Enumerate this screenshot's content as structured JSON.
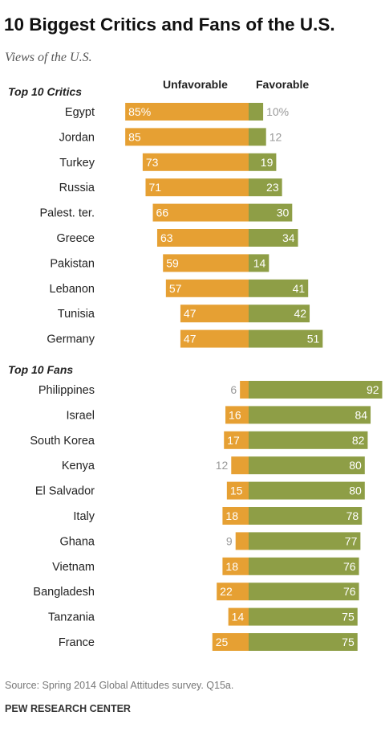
{
  "title": "10 Biggest Critics and Fans of the U.S.",
  "subtitle": "Views of the U.S.",
  "footer": {
    "source": "Source: Spring 2014 Global Attitudes survey. Q15a.",
    "org": "PEW RESEARCH CENTER"
  },
  "chart_data": {
    "type": "bar",
    "orientation": "diverging-horizontal",
    "column_headers": {
      "unfavorable": "Unfavorable",
      "favorable": "Favorable"
    },
    "colors": {
      "unfavorable": "#e6a033",
      "favorable": "#8e9e46",
      "label_in_bar": "#ffffff",
      "label_outside": "#999999",
      "country": "#222222"
    },
    "groups": [
      {
        "title": "Top 10 Critics",
        "rows": [
          {
            "country": "Egypt",
            "unfavorable": 85,
            "favorable": 10,
            "unfavorable_label": "85%",
            "favorable_label": "10%"
          },
          {
            "country": "Jordan",
            "unfavorable": 85,
            "favorable": 12,
            "unfavorable_label": "85",
            "favorable_label": "12"
          },
          {
            "country": "Turkey",
            "unfavorable": 73,
            "favorable": 19,
            "unfavorable_label": "73",
            "favorable_label": "19"
          },
          {
            "country": "Russia",
            "unfavorable": 71,
            "favorable": 23,
            "unfavorable_label": "71",
            "favorable_label": "23"
          },
          {
            "country": "Palest. ter.",
            "unfavorable": 66,
            "favorable": 30,
            "unfavorable_label": "66",
            "favorable_label": "30"
          },
          {
            "country": "Greece",
            "unfavorable": 63,
            "favorable": 34,
            "unfavorable_label": "63",
            "favorable_label": "34"
          },
          {
            "country": "Pakistan",
            "unfavorable": 59,
            "favorable": 14,
            "unfavorable_label": "59",
            "favorable_label": "14"
          },
          {
            "country": "Lebanon",
            "unfavorable": 57,
            "favorable": 41,
            "unfavorable_label": "57",
            "favorable_label": "41"
          },
          {
            "country": "Tunisia",
            "unfavorable": 47,
            "favorable": 42,
            "unfavorable_label": "47",
            "favorable_label": "42"
          },
          {
            "country": "Germany",
            "unfavorable": 47,
            "favorable": 51,
            "unfavorable_label": "47",
            "favorable_label": "51"
          }
        ]
      },
      {
        "title": "Top 10 Fans",
        "rows": [
          {
            "country": "Philippines",
            "unfavorable": 6,
            "favorable": 92,
            "unfavorable_label": "6",
            "favorable_label": "92"
          },
          {
            "country": "Israel",
            "unfavorable": 16,
            "favorable": 84,
            "unfavorable_label": "16",
            "favorable_label": "84"
          },
          {
            "country": "South Korea",
            "unfavorable": 17,
            "favorable": 82,
            "unfavorable_label": "17",
            "favorable_label": "82"
          },
          {
            "country": "Kenya",
            "unfavorable": 12,
            "favorable": 80,
            "unfavorable_label": "12",
            "favorable_label": "80"
          },
          {
            "country": "El Salvador",
            "unfavorable": 15,
            "favorable": 80,
            "unfavorable_label": "15",
            "favorable_label": "80"
          },
          {
            "country": "Italy",
            "unfavorable": 18,
            "favorable": 78,
            "unfavorable_label": "18",
            "favorable_label": "78"
          },
          {
            "country": "Ghana",
            "unfavorable": 9,
            "favorable": 77,
            "unfavorable_label": "9",
            "favorable_label": "77"
          },
          {
            "country": "Vietnam",
            "unfavorable": 18,
            "favorable": 76,
            "unfavorable_label": "18",
            "favorable_label": "76"
          },
          {
            "country": "Bangladesh",
            "unfavorable": 22,
            "favorable": 76,
            "unfavorable_label": "22",
            "favorable_label": "76"
          },
          {
            "country": "Tanzania",
            "unfavorable": 14,
            "favorable": 75,
            "unfavorable_label": "14",
            "favorable_label": "75"
          },
          {
            "country": "France",
            "unfavorable": 25,
            "favorable": 75,
            "unfavorable_label": "25",
            "favorable_label": "75"
          }
        ]
      }
    ]
  }
}
